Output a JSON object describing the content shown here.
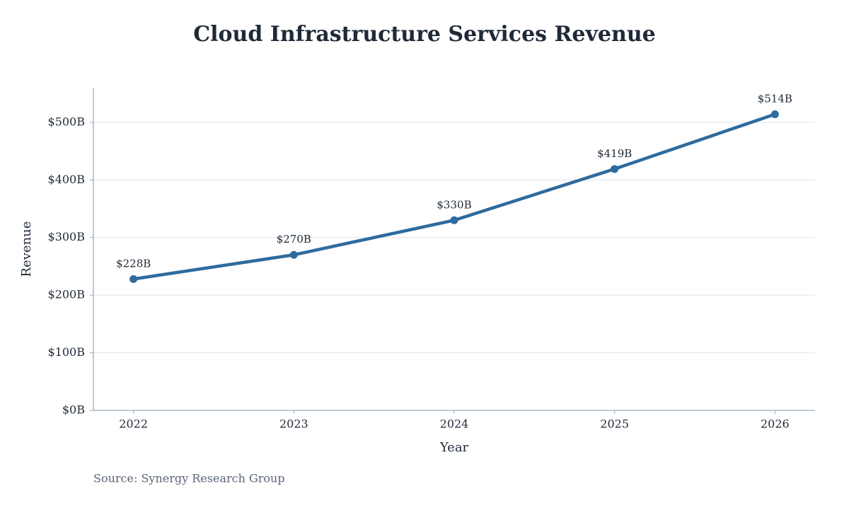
{
  "chart_data": {
    "type": "line",
    "title": "Cloud Infrastructure Services Revenue",
    "x_label": "Year",
    "y_label": "Revenue",
    "source": "Source: Synergy Research Group",
    "x": [
      2022,
      2023,
      2024,
      2025,
      2026
    ],
    "series": [
      {
        "name": "Revenue",
        "color": "#2e6b9e",
        "values": [
          228,
          270,
          330,
          419,
          514
        ],
        "value_labels": [
          "$228B",
          "$270B",
          "$330B",
          "$419B",
          "$514B"
        ]
      }
    ],
    "xlim": [
      2021.75,
      2026.25
    ],
    "xticks": [
      2022,
      2023,
      2024,
      2025,
      2026
    ],
    "ylim": [
      0,
      560
    ],
    "yticks": [
      {
        "value": 0,
        "label": "$0B"
      },
      {
        "value": 100,
        "label": "$100B"
      },
      {
        "value": 200,
        "label": "$200B"
      },
      {
        "value": 300,
        "label": "$300B"
      },
      {
        "value": 400,
        "label": "$400B"
      },
      {
        "value": 500,
        "label": "$500B"
      }
    ],
    "grid": true
  }
}
